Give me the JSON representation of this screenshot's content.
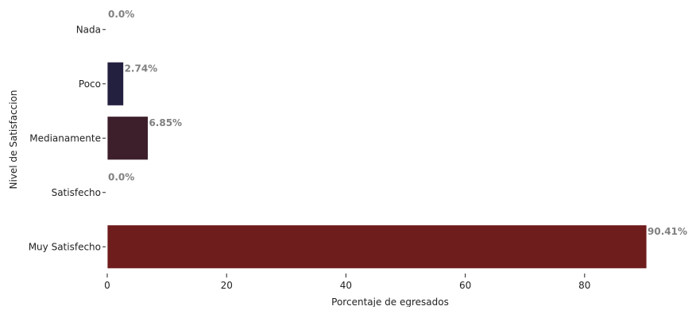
{
  "chart_data": {
    "type": "bar",
    "orientation": "horizontal",
    "categories": [
      "Nada",
      "Poco",
      "Medianamente",
      "Satisfecho",
      "Muy Satisfecho"
    ],
    "values": [
      0.0,
      2.74,
      6.85,
      0.0,
      90.41
    ],
    "data_labels": [
      "0.0%",
      "2.74%",
      "6.85%",
      "0.0%",
      "90.41%"
    ],
    "colors": [
      "#1c1b33",
      "#231f3e",
      "#3d1f2c",
      "#561e23",
      "#6f1c1c"
    ],
    "title": "",
    "xlabel": "Porcentaje de egresados",
    "ylabel": "Nivel de Satisfaccion",
    "xlim": [
      0,
      90.41
    ],
    "x_ticks": [
      0,
      20,
      40,
      60,
      80
    ],
    "grid": false,
    "legend": "none"
  }
}
